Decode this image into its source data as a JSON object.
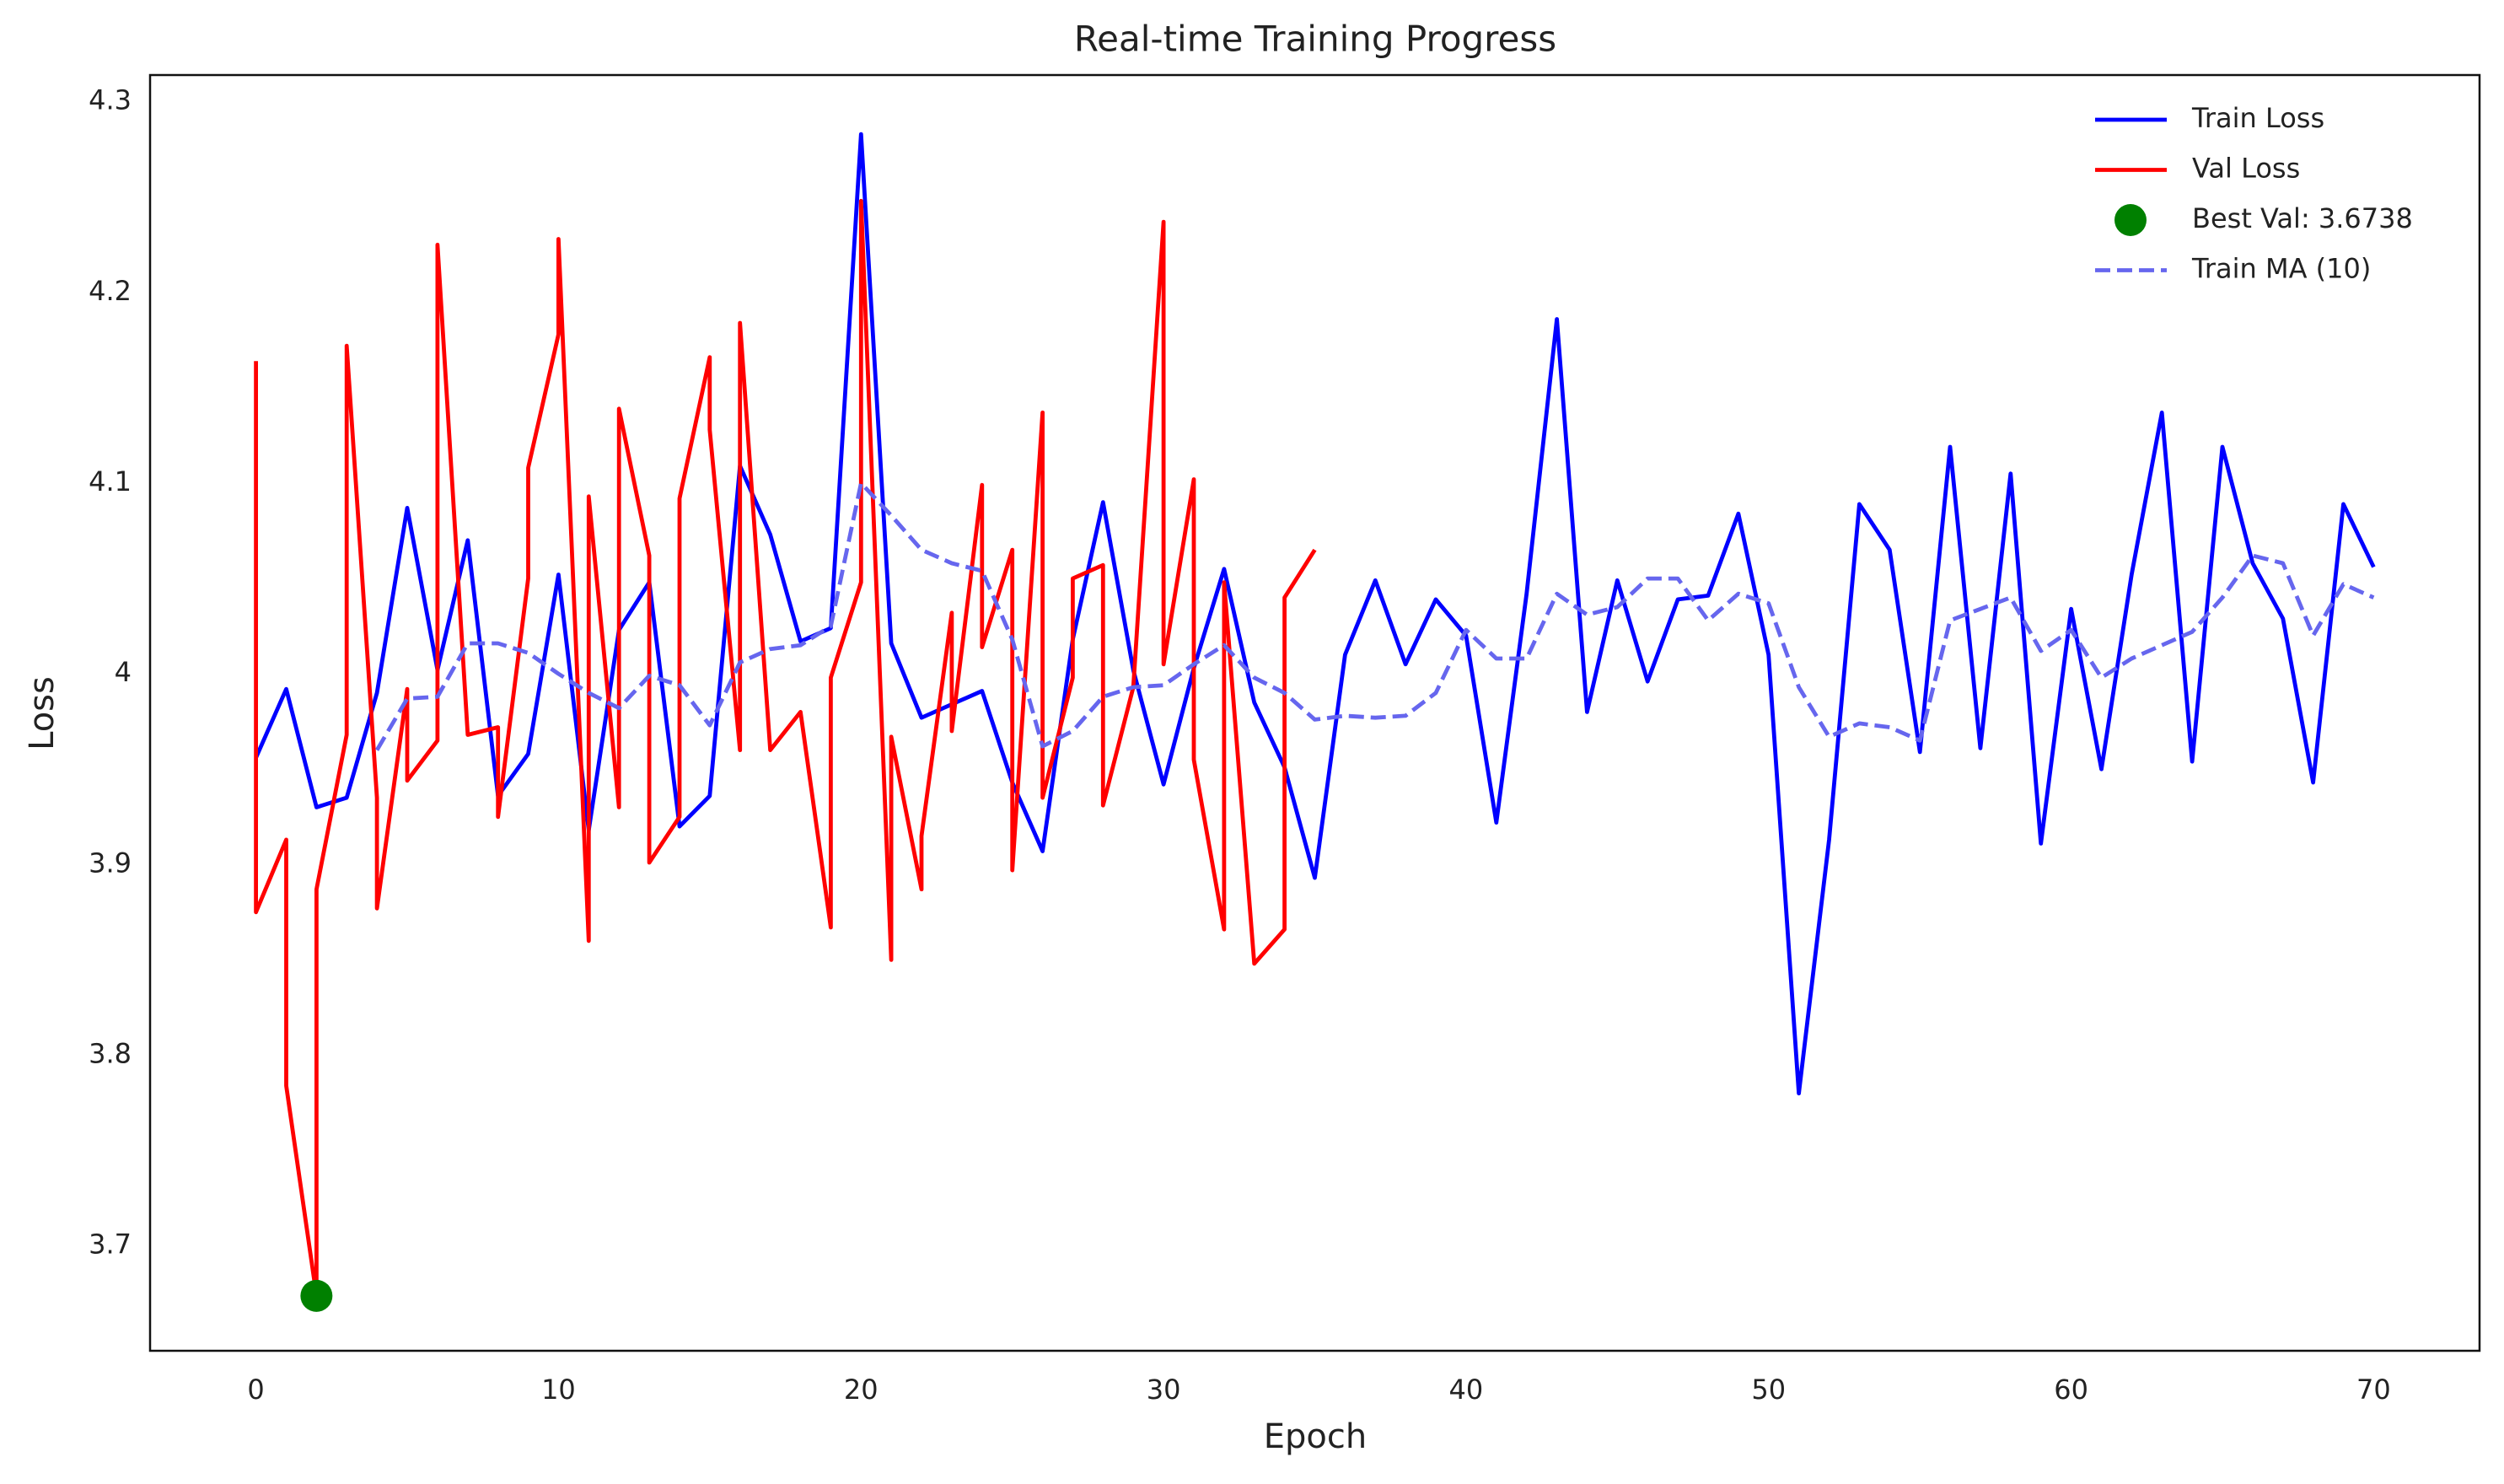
{
  "chart_data": {
    "type": "line",
    "title": "Real-time Training Progress",
    "xlabel": "Epoch",
    "ylabel": "Loss",
    "xlim": [
      -3.5,
      73.5
    ],
    "xticks": [
      0,
      10,
      20,
      30,
      40,
      50,
      60,
      70
    ],
    "ylim": [
      3.645,
      4.314
    ],
    "yticks": [
      3.7,
      3.8,
      3.9,
      4.0,
      4.1,
      4.2,
      4.3
    ],
    "grid": false,
    "legend": "upper right",
    "series": [
      {
        "name": "Train Loss",
        "color": "#0000ff",
        "style": "solid",
        "x": [
          0,
          1,
          2,
          3,
          4,
          5,
          6,
          7,
          8,
          9,
          10,
          11,
          12,
          13,
          14,
          15,
          16,
          17,
          18,
          19,
          20,
          21,
          22,
          23,
          24,
          25,
          26,
          27,
          28,
          29,
          30,
          31,
          32,
          33,
          34,
          35,
          36,
          37,
          38,
          39,
          40,
          41,
          42,
          43,
          44,
          45,
          46,
          47,
          48,
          49,
          50,
          51,
          52,
          53,
          54,
          55,
          56,
          57,
          58,
          59,
          60,
          61,
          62,
          63,
          64,
          65,
          66,
          67,
          68,
          69,
          70
        ],
        "values": [
          3.956,
          3.992,
          3.93,
          3.935,
          3.99,
          4.087,
          4.002,
          4.07,
          3.936,
          3.958,
          4.052,
          3.918,
          4.023,
          4.048,
          3.92,
          3.936,
          4.109,
          4.073,
          4.017,
          4.024,
          4.283,
          4.016,
          3.977,
          3.984,
          3.991,
          3.943,
          3.907,
          4.018,
          4.09,
          4.002,
          3.942,
          4.003,
          4.055,
          3.985,
          3.951,
          3.893,
          4.01,
          4.049,
          4.005,
          4.039,
          4.02,
          3.922,
          4.042,
          4.186,
          3.98,
          4.049,
          3.996,
          4.039,
          4.041,
          4.084,
          4.01,
          3.78,
          3.913,
          4.089,
          4.065,
          3.959,
          4.119,
          3.961,
          4.105,
          3.911,
          4.034,
          3.95,
          4.052,
          4.137,
          3.954,
          4.119,
          4.058,
          4.029,
          3.943,
          4.089,
          4.056
        ]
      },
      {
        "name": "Val Loss",
        "color": "#ff0000",
        "style": "solid",
        "x": [
          0,
          0,
          1,
          1,
          2,
          2,
          3,
          3,
          4,
          4,
          5,
          5,
          6,
          6,
          7,
          8,
          8,
          9,
          9,
          10,
          10,
          11,
          11,
          12,
          12,
          13,
          13,
          14,
          14,
          15,
          15,
          16,
          16,
          17,
          18,
          19,
          19,
          20,
          20,
          21,
          21,
          22,
          22,
          23,
          23,
          24,
          24,
          25,
          25,
          26,
          26,
          27,
          27,
          28,
          28,
          29,
          30,
          30,
          31,
          31,
          32,
          32,
          33,
          34,
          34,
          35
        ],
        "values": [
          4.164,
          3.875,
          3.913,
          3.784,
          3.6738,
          3.887,
          3.968,
          4.172,
          3.935,
          3.877,
          3.992,
          3.944,
          3.965,
          4.225,
          3.968,
          3.972,
          3.925,
          4.05,
          4.108,
          4.178,
          4.228,
          3.86,
          4.093,
          3.93,
          4.139,
          4.062,
          3.901,
          3.925,
          4.092,
          4.166,
          4.128,
          3.96,
          4.184,
          3.96,
          3.98,
          3.867,
          3.998,
          4.048,
          4.248,
          3.85,
          3.967,
          3.887,
          3.915,
          4.032,
          3.97,
          4.099,
          4.014,
          4.065,
          3.897,
          4.137,
          3.935,
          3.998,
          4.05,
          4.057,
          3.931,
          3.993,
          4.237,
          4.005,
          4.102,
          3.955,
          3.866,
          4.048,
          3.848,
          3.866,
          4.04,
          4.065
        ]
      },
      {
        "name": "Best Val: 3.6738",
        "color": "#008000",
        "style": "marker",
        "x": [
          2
        ],
        "values": [
          3.6738
        ]
      },
      {
        "name": "Train MA (10)",
        "color": "#6666ee",
        "style": "dashed",
        "x": [
          0,
          1,
          2,
          3,
          4,
          5,
          6,
          7,
          8,
          9,
          10,
          11,
          12,
          13,
          14,
          15,
          16,
          17,
          18,
          19,
          20,
          21,
          22,
          23,
          24,
          25,
          26,
          27,
          28,
          29,
          30,
          31,
          32,
          33,
          34,
          35,
          36,
          37,
          38,
          39,
          40,
          41,
          42,
          43,
          44,
          45,
          46,
          47,
          48,
          49,
          50,
          51,
          52,
          53,
          54,
          55,
          56,
          57,
          58,
          59,
          60,
          61,
          62,
          63,
          64,
          65,
          66,
          67,
          68,
          69,
          70
        ],
        "values": [
          null,
          null,
          null,
          null,
          3.96,
          3.987,
          3.988,
          4.016,
          4.016,
          4.011,
          4.0,
          3.99,
          3.982,
          3.999,
          3.994,
          3.973,
          4.006,
          4.013,
          4.015,
          4.025,
          4.1,
          4.083,
          4.065,
          4.058,
          4.054,
          4.018,
          3.962,
          3.97,
          3.988,
          3.993,
          3.994,
          4.005,
          4.015,
          3.998,
          3.99,
          3.976,
          3.978,
          3.977,
          3.978,
          3.99,
          4.023,
          4.008,
          4.008,
          4.042,
          4.031,
          4.035,
          4.05,
          4.05,
          4.028,
          4.042,
          4.037,
          3.993,
          3.967,
          3.974,
          3.972,
          3.965,
          4.028,
          4.034,
          4.04,
          4.012,
          4.023,
          3.998,
          4.008,
          4.015,
          4.022,
          4.04,
          4.062,
          4.058,
          4.02,
          4.047,
          4.04
        ]
      }
    ]
  }
}
